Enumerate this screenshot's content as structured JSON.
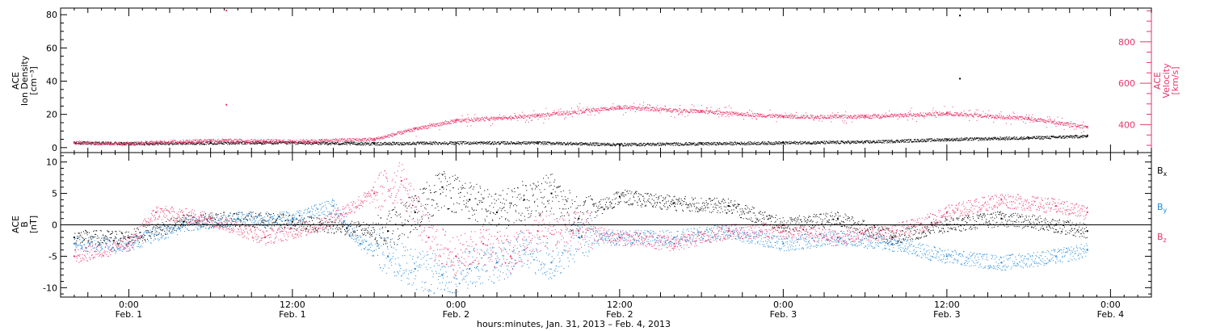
{
  "chart_data": [
    {
      "type": "scatter",
      "panel": "plasma",
      "ylabel_left": [
        "ACE",
        "Ion Density",
        "[cm⁻³]"
      ],
      "ylabel_right": [
        "ACE",
        "Velocity",
        "[km/s]"
      ],
      "y_left_lim": [
        -3,
        84
      ],
      "y_left_ticks": [
        0,
        20,
        40,
        60,
        80
      ],
      "y_right_lim": [
        265,
        963
      ],
      "y_right_ticks": [
        400,
        600,
        800
      ],
      "x_hours_lim": [
        -5.0,
        75.0
      ],
      "series": [
        {
          "axis": "left",
          "color": "#000000",
          "x_hours": [
            -4,
            0,
            6,
            12,
            18,
            24,
            30,
            36,
            42,
            48,
            54,
            60,
            66,
            70.3
          ],
          "values": [
            3,
            2.5,
            3,
            3,
            2.5,
            3,
            3,
            2,
            2.5,
            3,
            3.5,
            5,
            6,
            7
          ]
        },
        {
          "axis": "right",
          "color": "#e8356a",
          "x_hours": [
            -4,
            0,
            6,
            12,
            18,
            21,
            24,
            30,
            36,
            42,
            48,
            54,
            60,
            66,
            70.3
          ],
          "values": [
            315,
            310,
            325,
            320,
            330,
            380,
            420,
            445,
            485,
            465,
            440,
            440,
            455,
            430,
            390
          ]
        }
      ]
    },
    {
      "type": "scatter",
      "panel": "magnetic-field",
      "ylabel": [
        "ACE",
        "B",
        "[nT]"
      ],
      "ylim": [
        -11.5,
        11.5
      ],
      "y_ticks": [
        -10,
        -5,
        0,
        5,
        10
      ],
      "x_hours_lim": [
        -5.0,
        75.0
      ],
      "zero_line": true,
      "series": [
        {
          "name": "Bx",
          "label_base": "B",
          "label_sub": "x",
          "color": "#000000",
          "x_hours": [
            -4,
            0,
            4,
            8,
            12,
            16,
            19,
            21,
            23,
            25,
            27,
            29,
            31,
            33,
            36,
            40,
            44,
            48,
            52,
            56,
            60,
            64,
            68,
            70.3
          ],
          "values": [
            -2,
            -2,
            0.5,
            1,
            0.5,
            -0.5,
            -1,
            2,
            6,
            4,
            2,
            4,
            5,
            1,
            4.5,
            3.5,
            3,
            0,
            1,
            -2,
            0,
            1,
            0,
            -1
          ]
        },
        {
          "name": "By",
          "label_base": "B",
          "label_sub": "y",
          "color": "#1f88dd",
          "x_hours": [
            -4,
            0,
            4,
            8,
            12,
            15,
            17,
            19,
            21,
            23,
            25,
            27,
            29,
            31,
            33,
            36,
            40,
            44,
            48,
            52,
            56,
            60,
            64,
            68,
            70.3
          ],
          "values": [
            -3,
            -3,
            0,
            1,
            1,
            3,
            -3,
            -5,
            -7,
            -8,
            -7,
            -6,
            -4,
            -6,
            -2,
            -2,
            -2,
            -1,
            -3,
            -2,
            -3,
            -5,
            -6,
            -5,
            -4
          ]
        },
        {
          "name": "Bz",
          "label_base": "B",
          "label_sub": "z",
          "color": "#e8356a",
          "x_hours": [
            -4,
            0,
            2,
            6,
            10,
            14,
            18,
            20,
            22,
            24,
            26,
            28,
            30,
            33,
            36,
            40,
            44,
            48,
            52,
            56,
            58,
            60,
            64,
            68,
            70.3
          ],
          "values": [
            -5,
            -3,
            2,
            1,
            -2,
            0,
            5,
            7,
            -2,
            -5,
            -3,
            -5,
            -1,
            -1,
            -2,
            -3,
            -1,
            -1,
            -2,
            -1,
            0,
            2,
            4,
            3,
            2
          ]
        }
      ]
    }
  ],
  "x_ticks": [
    {
      "hour": 0,
      "time": "0:00",
      "date": "Feb. 1"
    },
    {
      "hour": 12,
      "time": "12:00",
      "date": "Feb. 1"
    },
    {
      "hour": 24,
      "time": "0:00",
      "date": "Feb. 2"
    },
    {
      "hour": 36,
      "time": "12:00",
      "date": "Feb. 2"
    },
    {
      "hour": 48,
      "time": "0:00",
      "date": "Feb. 3"
    },
    {
      "hour": 60,
      "time": "12:00",
      "date": "Feb. 3"
    },
    {
      "hour": 72,
      "time": "0:00",
      "date": "Feb. 4"
    }
  ],
  "xlabel": "hours:minutes, Jan. 31, 2013 – Feb.  4, 2013",
  "spikes": [
    {
      "panel": "plasma",
      "axis": "right",
      "x_hour": 7.1,
      "value": 955
    },
    {
      "panel": "plasma",
      "axis": "right",
      "x_hour": 7.1,
      "value": 500
    },
    {
      "panel": "plasma",
      "axis": "left",
      "x_hour": 60.9,
      "value": 80
    },
    {
      "panel": "plasma",
      "axis": "left",
      "x_hour": 60.9,
      "value": 42
    }
  ]
}
